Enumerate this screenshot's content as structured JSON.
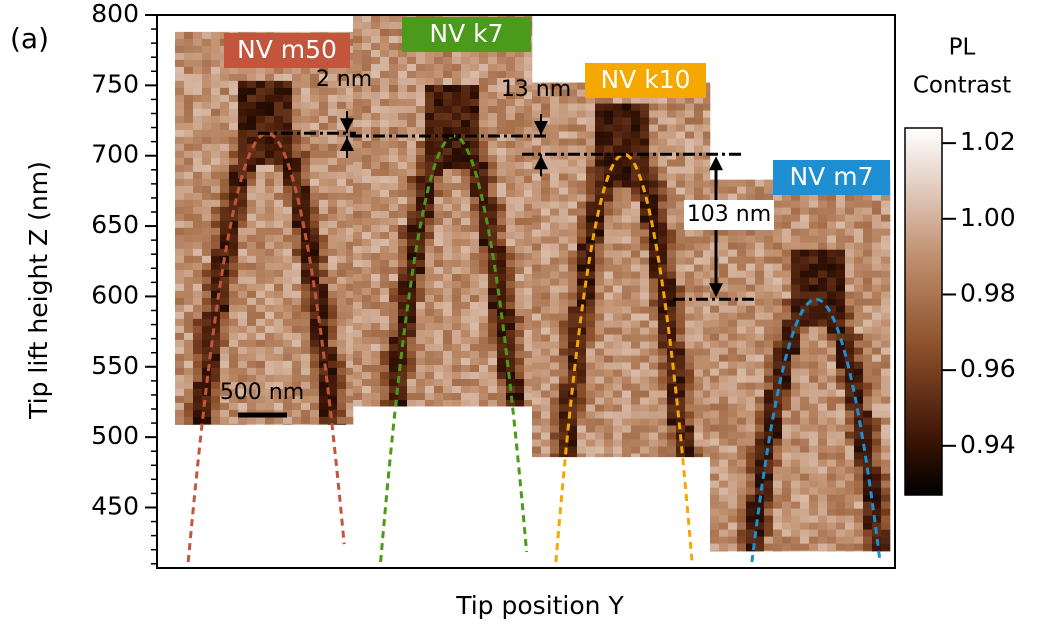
{
  "chart_data": {
    "type": "heatmap_panels",
    "panel_label": "(a)",
    "xlabel": "Tip position Y",
    "ylabel": "Tip lift height Z (nm)",
    "ylim": [
      407,
      800
    ],
    "yticks": [
      450,
      500,
      550,
      600,
      650,
      700,
      750,
      800
    ],
    "yticks_minor": [
      410,
      420,
      430,
      440,
      460,
      470,
      480,
      490,
      510,
      520,
      530,
      540,
      560,
      570,
      580,
      590,
      610,
      620,
      630,
      640,
      660,
      670,
      680,
      690,
      710,
      720,
      730,
      740,
      760,
      770,
      780,
      790
    ],
    "colorbar": {
      "title_lines": [
        "PL",
        "Contrast"
      ],
      "clim": [
        0.927,
        1.024
      ],
      "ticks": [
        {
          "value": 1.02,
          "label": "1.02"
        },
        {
          "value": 1,
          "label": "1.00"
        },
        {
          "value": 0.98,
          "label": "0.98"
        },
        {
          "value": 0.96,
          "label": "0.96"
        },
        {
          "value": 0.94,
          "label": "0.94"
        }
      ]
    },
    "panels": [
      {
        "name": "NV m50",
        "color": "#c4553d",
        "ylim": [
          509,
          788
        ],
        "apex": 716
      },
      {
        "name": "NV k7",
        "color": "#4c9a1c",
        "ylim": [
          522,
          800
        ],
        "apex": 714
      },
      {
        "name": "NV k10",
        "color": "#f5a800",
        "ylim": [
          486,
          752
        ],
        "apex": 701
      },
      {
        "name": "NV m7",
        "color": "#1e8fd2",
        "ylim": [
          419,
          683
        ],
        "apex": 598
      }
    ],
    "annotations": [
      {
        "text": "2 nm"
      },
      {
        "text": "13 nm"
      },
      {
        "text": "103 nm"
      }
    ],
    "scale_bar": "500 nm"
  }
}
